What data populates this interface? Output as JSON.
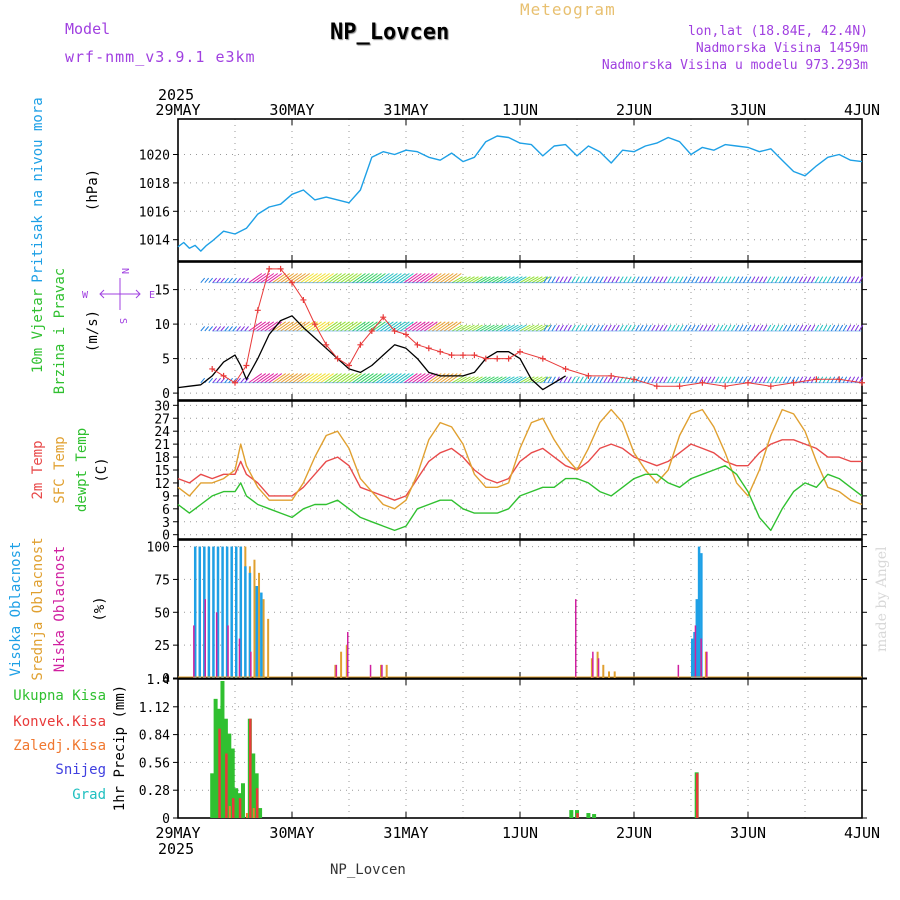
{
  "header": {
    "meteogram": "Meteogram",
    "model_label": "Model",
    "model_name": "wrf-nmm_v3.9.1 e3km",
    "station": "NP_Lovcen",
    "lonlat": "lon,lat (18.84E, 42.4N)",
    "altitude": "Nadmorska Visina 1459m",
    "model_altitude": "Nadmorska Visina u modelu 973.293m",
    "footer": "NP_Lovcen",
    "credit": "made by Angel"
  },
  "colors": {
    "pressure": "#1ea0e6",
    "wind_black": "#000000",
    "wind_red": "#e83a3a",
    "t2m": "#e84a4a",
    "sfc": "#e0a030",
    "dew": "#30c030",
    "high_cloud": "#1ea0e6",
    "mid_cloud": "#e0a030",
    "low_cloud": "#d020a0",
    "rain_total": "#30c030",
    "rain_conv": "#e83a3a",
    "rain_frz": "#f07830",
    "snow": "#4040e0",
    "hail": "#20c0c0",
    "violet": "#a040e0"
  },
  "chart_data": [
    {
      "type": "line",
      "id": "pressure",
      "ylabel": [
        "Pritisak na nivou mora",
        "(hPa)"
      ],
      "unit": "hPa",
      "ylim": [
        1012.5,
        1022.5
      ],
      "yticks": [
        1014,
        1016,
        1018,
        1020
      ],
      "x_days": [
        0.0,
        0.05,
        0.1,
        0.15,
        0.2,
        0.25,
        0.3,
        0.4,
        0.5,
        0.6,
        0.7,
        0.8,
        0.9,
        1.0,
        1.1,
        1.2,
        1.3,
        1.4,
        1.5,
        1.6,
        1.7,
        1.8,
        1.9,
        2.0,
        2.1,
        2.2,
        2.3,
        2.4,
        2.5,
        2.6,
        2.7,
        2.8,
        2.9,
        3.0,
        3.1,
        3.2,
        3.3,
        3.4,
        3.5,
        3.6,
        3.7,
        3.8,
        3.9,
        4.0,
        4.1,
        4.2,
        4.3,
        4.4,
        4.5,
        4.6,
        4.7,
        4.8,
        4.9,
        5.0,
        5.1,
        5.2,
        5.3,
        5.4,
        5.5,
        5.6,
        5.7,
        5.8,
        5.9,
        6.0
      ],
      "values": [
        1013.5,
        1013.8,
        1013.4,
        1013.6,
        1013.2,
        1013.6,
        1013.9,
        1014.6,
        1014.4,
        1014.8,
        1015.8,
        1016.3,
        1016.5,
        1017.2,
        1017.5,
        1016.8,
        1017.0,
        1016.8,
        1016.6,
        1017.5,
        1019.8,
        1020.2,
        1020.0,
        1020.3,
        1020.2,
        1019.8,
        1019.6,
        1020.1,
        1019.5,
        1019.8,
        1020.9,
        1021.3,
        1021.2,
        1020.8,
        1020.7,
        1019.9,
        1020.6,
        1020.7,
        1019.9,
        1020.6,
        1020.2,
        1019.4,
        1020.3,
        1020.2,
        1020.6,
        1020.8,
        1021.2,
        1020.9,
        1020.0,
        1020.5,
        1020.3,
        1020.7,
        1020.6,
        1020.5,
        1020.2,
        1020.4,
        1019.6,
        1018.8,
        1018.5,
        1019.2,
        1019.8,
        1020.0,
        1019.6,
        1019.5
      ]
    },
    {
      "type": "line",
      "id": "wind",
      "ylabel": [
        "10m Vjetar",
        "Brzina i Pravac",
        "(m/s)"
      ],
      "unit": "m/s",
      "ylim": [
        -1,
        19
      ],
      "yticks": [
        0,
        5,
        10,
        15
      ],
      "legend": "N, E, S, W direction rose",
      "barb_levels": [
        1.5,
        9,
        16
      ],
      "series": [
        {
          "name": "speed",
          "x_days": [
            0.0,
            0.1,
            0.2,
            0.3,
            0.4,
            0.5,
            0.55,
            0.6,
            0.7,
            0.8,
            0.9,
            1.0,
            1.1,
            1.2,
            1.3,
            1.4,
            1.5,
            1.6,
            1.7,
            1.8,
            1.9,
            2.0,
            2.1,
            2.2,
            2.3,
            2.4,
            2.5,
            2.6,
            2.7,
            2.8,
            2.9,
            3.0,
            3.1,
            3.2,
            3.3,
            3.4
          ],
          "values": [
            0.8,
            1.0,
            1.2,
            2.5,
            4.5,
            5.5,
            4.0,
            2.0,
            5.0,
            8.5,
            10.5,
            11.2,
            9.5,
            8.0,
            6.5,
            5.0,
            3.5,
            3.0,
            4.0,
            5.5,
            7.0,
            6.5,
            5.0,
            3.0,
            2.5,
            2.5,
            2.5,
            3.0,
            5.0,
            6.0,
            6.0,
            5.0,
            2.0,
            0.5,
            1.5,
            2.5
          ]
        },
        {
          "name": "gust",
          "x_days": [
            0.3,
            0.4,
            0.5,
            0.6,
            0.7,
            0.8,
            0.9,
            1.0,
            1.1,
            1.2,
            1.3,
            1.4,
            1.5,
            1.6,
            1.7,
            1.8,
            1.9,
            2.0,
            2.1,
            2.2,
            2.3,
            2.4,
            2.5,
            2.6,
            2.7,
            2.8,
            2.9,
            3.0,
            3.2,
            3.4,
            3.6,
            3.8,
            4.0,
            4.2,
            4.4,
            4.6,
            4.8,
            5.0,
            5.2,
            5.4,
            5.6,
            5.8,
            6.0
          ],
          "values": [
            3.5,
            2.5,
            1.5,
            4.0,
            12.0,
            18.0,
            18.0,
            16.0,
            13.5,
            10.0,
            7.0,
            5.0,
            4.0,
            7.0,
            9.0,
            11.0,
            9.0,
            8.5,
            7.0,
            6.5,
            6.0,
            5.5,
            5.5,
            5.5,
            5.0,
            5.0,
            5.0,
            6.0,
            5.0,
            3.5,
            2.5,
            2.5,
            2.0,
            1.0,
            1.0,
            1.5,
            1.0,
            1.5,
            1.0,
            1.5,
            2.0,
            2.0,
            1.5
          ]
        }
      ]
    },
    {
      "type": "line",
      "id": "temperature",
      "ylabel": [
        "2m Temp",
        "SFC Temp",
        "dewpt Temp",
        "(C)"
      ],
      "unit": "C",
      "ylim": [
        -1,
        31
      ],
      "yticks": [
        0,
        3,
        6,
        9,
        12,
        15,
        18,
        21,
        24,
        27,
        30
      ],
      "x_days": [
        0.0,
        0.1,
        0.2,
        0.3,
        0.4,
        0.5,
        0.55,
        0.6,
        0.7,
        0.8,
        0.9,
        1.0,
        1.1,
        1.2,
        1.3,
        1.4,
        1.5,
        1.6,
        1.7,
        1.8,
        1.9,
        2.0,
        2.1,
        2.2,
        2.3,
        2.4,
        2.5,
        2.6,
        2.7,
        2.8,
        2.9,
        3.0,
        3.1,
        3.2,
        3.3,
        3.4,
        3.5,
        3.6,
        3.7,
        3.8,
        3.9,
        4.0,
        4.1,
        4.2,
        4.3,
        4.4,
        4.5,
        4.6,
        4.7,
        4.8,
        4.9,
        5.0,
        5.1,
        5.2,
        5.3,
        5.4,
        5.5,
        5.6,
        5.7,
        5.8,
        5.9,
        6.0
      ],
      "series": [
        {
          "name": "2m Temp",
          "values": [
            13,
            12,
            14,
            13,
            14,
            14,
            17,
            14,
            12,
            9,
            9,
            9,
            11,
            14,
            17,
            18,
            16,
            11,
            10,
            9,
            8,
            9,
            13,
            17,
            19,
            20,
            18,
            15,
            13,
            12,
            13,
            17,
            19,
            20,
            18,
            16,
            15,
            17,
            20,
            21,
            20,
            18,
            17,
            16,
            17,
            19,
            21,
            20,
            19,
            17,
            16,
            16,
            19,
            21,
            22,
            22,
            21,
            20,
            18,
            18,
            17,
            17
          ]
        },
        {
          "name": "SFC Temp",
          "values": [
            11,
            9,
            12,
            12,
            13,
            15,
            21,
            16,
            11,
            8,
            8,
            8,
            12,
            18,
            23,
            24,
            20,
            13,
            10,
            7,
            6,
            8,
            14,
            22,
            26,
            25,
            21,
            14,
            11,
            11,
            12,
            20,
            26,
            27,
            22,
            18,
            15,
            20,
            26,
            29,
            26,
            19,
            15,
            12,
            15,
            23,
            28,
            29,
            25,
            19,
            12,
            9,
            15,
            23,
            29,
            28,
            24,
            17,
            11,
            10,
            8,
            7
          ]
        },
        {
          "name": "dewpt Temp",
          "values": [
            7,
            5,
            7,
            9,
            10,
            10,
            12,
            9,
            7,
            6,
            5,
            4,
            6,
            7,
            7,
            8,
            6,
            4,
            3,
            2,
            1,
            2,
            6,
            7,
            8,
            8,
            6,
            5,
            5,
            5,
            6,
            9,
            10,
            11,
            11,
            13,
            13,
            12,
            10,
            9,
            11,
            13,
            14,
            14,
            12,
            11,
            13,
            14,
            15,
            16,
            14,
            10,
            4,
            1,
            6,
            10,
            12,
            11,
            14,
            13,
            11,
            9
          ]
        }
      ]
    },
    {
      "type": "bar",
      "id": "clouds",
      "ylabel": [
        "Visoka Oblacnost",
        "Srednja Oblacnost",
        "Niska Oblacnost",
        "(%)"
      ],
      "unit": "%",
      "ylim": [
        0,
        105
      ],
      "yticks": [
        0,
        25,
        50,
        75,
        100
      ],
      "series": [
        {
          "name": "Visoka Oblacnost",
          "x_days": [
            0.14,
            0.18,
            0.22,
            0.26,
            0.3,
            0.34,
            0.38,
            0.42,
            0.46,
            0.5,
            0.54,
            0.58,
            0.62,
            0.68,
            0.72,
            4.5,
            4.52,
            4.54,
            4.56,
            4.58
          ],
          "values": [
            100,
            100,
            100,
            100,
            100,
            100,
            100,
            100,
            100,
            100,
            100,
            85,
            80,
            70,
            65,
            30,
            35,
            60,
            100,
            95
          ]
        },
        {
          "name": "Srednja Oblacnost",
          "x_days": [
            0.12,
            0.16,
            0.2,
            0.24,
            0.28,
            0.32,
            0.36,
            0.4,
            0.44,
            0.48,
            0.52,
            0.56,
            0.6,
            0.64,
            0.68,
            0.72,
            0.76,
            1.35,
            1.4,
            1.45,
            1.75,
            1.8,
            3.6,
            3.65,
            3.7,
            3.75,
            3.8,
            4.48,
            4.52,
            4.56,
            4.6
          ],
          "values": [
            100,
            100,
            100,
            95,
            100,
            100,
            100,
            95,
            100,
            100,
            100,
            100,
            85,
            90,
            80,
            60,
            45,
            10,
            20,
            25,
            10,
            10,
            15,
            20,
            10,
            5,
            5,
            20,
            25,
            30,
            20
          ]
        },
        {
          "name": "Niska Oblacnost",
          "x_days": [
            0.15,
            0.25,
            0.35,
            0.45,
            0.55,
            0.65,
            1.4,
            1.5,
            1.7,
            1.8,
            3.5,
            3.65,
            3.7,
            4.4,
            4.55,
            4.6,
            4.65
          ],
          "values": [
            40,
            60,
            50,
            40,
            30,
            20,
            10,
            35,
            10,
            10,
            60,
            20,
            15,
            10,
            40,
            30,
            20
          ]
        }
      ]
    },
    {
      "type": "bar",
      "id": "precip",
      "ylabel": [
        "1hr Precip (mm)"
      ],
      "unit": "mm",
      "legend": [
        "Ukupna Kisa",
        "Konvek.Kisa",
        "Zaledj.Kisa",
        "Snijeg",
        "Grad"
      ],
      "ylim": [
        0,
        1.4
      ],
      "yticks": [
        0,
        0.28,
        0.56,
        0.84,
        1.12,
        1.4
      ],
      "series": [
        {
          "name": "Ukupna Kisa",
          "x_days": [
            0.3,
            0.33,
            0.36,
            0.39,
            0.42,
            0.45,
            0.48,
            0.51,
            0.54,
            0.57,
            0.63,
            0.66,
            0.69,
            0.72,
            3.45,
            3.5,
            3.6,
            3.65,
            4.55
          ],
          "values": [
            0.45,
            1.2,
            1.1,
            1.38,
            1.0,
            0.85,
            0.7,
            0.3,
            0.25,
            0.35,
            1.0,
            0.65,
            0.45,
            0.1,
            0.08,
            0.08,
            0.05,
            0.04,
            0.46
          ]
        },
        {
          "name": "Konvek.Kisa",
          "x_days": [
            0.36,
            0.42,
            0.48,
            0.54,
            0.63,
            0.69,
            3.5,
            4.55
          ],
          "values": [
            0.9,
            0.65,
            0.2,
            0.2,
            1.0,
            0.3,
            0.05,
            0.45
          ]
        },
        {
          "name": "Zaledj.Kisa",
          "x_days": [
            0.45,
            0.6,
            0.66
          ],
          "values": [
            0.12,
            0.05,
            0.1
          ]
        },
        {
          "name": "Snijeg",
          "x_days": [],
          "values": []
        },
        {
          "name": "Grad",
          "x_days": [],
          "values": []
        }
      ]
    }
  ],
  "axis": {
    "year": "2025",
    "date_labels": [
      "29MAY",
      "30MAY",
      "31MAY",
      "1JUN",
      "2JUN",
      "3JUN",
      "4JUN"
    ]
  }
}
